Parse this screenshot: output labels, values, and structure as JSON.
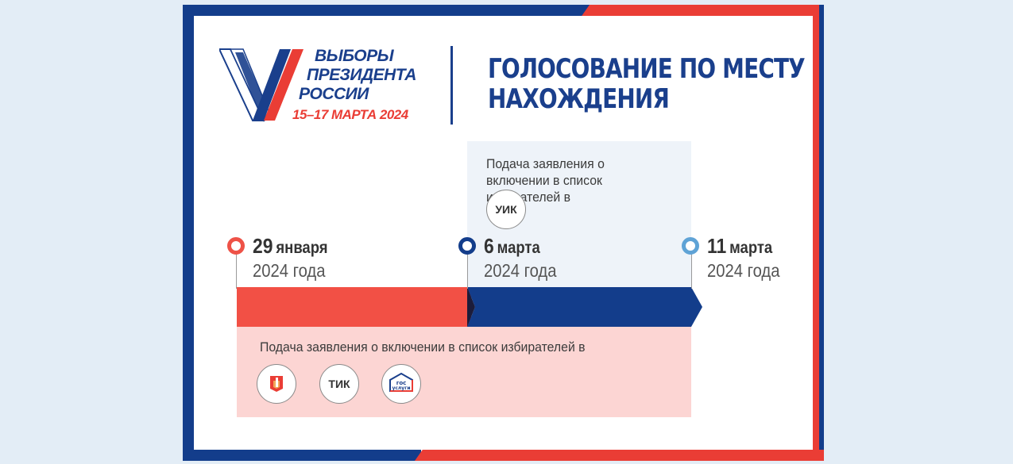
{
  "logo": {
    "line1": "ВЫБОРЫ",
    "line2": "ПРЕЗИДЕНТА",
    "line3": "РОССИИ",
    "dates": "15–17 МАРТА 2024"
  },
  "heading": {
    "line1": "ГОЛОСОВАНИЕ ПО МЕСТУ",
    "line2": "НАХОЖДЕНИЯ"
  },
  "uik_panel": {
    "text": "Подача заявления о включении в список избирателей в",
    "badge": "УИК"
  },
  "pink_panel": {
    "text": "Подача заявления о включении в список избирателей в",
    "badges": {
      "mfc": "mfc-icon",
      "tik": "ТИК",
      "gosuslugi": "гос услуги"
    }
  },
  "timeline": [
    {
      "day": "29",
      "month": "января",
      "year": "2024 года",
      "color": "#ee5247"
    },
    {
      "day": "6",
      "month": "марта",
      "year": "2024 года",
      "color": "#133d8b"
    },
    {
      "day": "11",
      "month": "марта",
      "year": "2024 года",
      "color": "#5fa3d6"
    }
  ],
  "colors": {
    "blue": "#133d8b",
    "red": "#ea3d35",
    "pink": "#fcd5d3",
    "light": "#eef3f9"
  }
}
